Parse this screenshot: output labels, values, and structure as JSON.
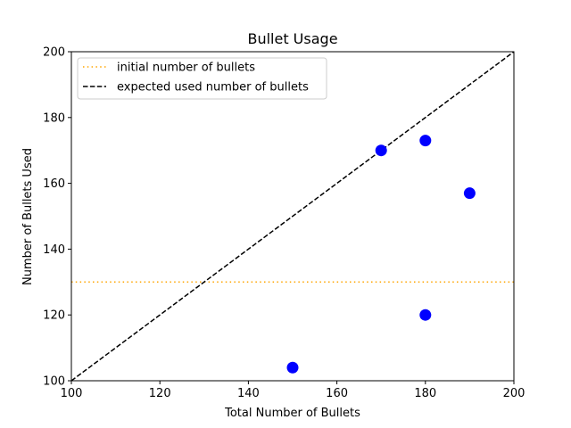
{
  "chart_data": {
    "type": "scatter",
    "title": "Bullet Usage",
    "xlabel": "Total Number of Bullets",
    "ylabel": "Number of Bullets Used",
    "xlim": [
      100,
      200
    ],
    "ylim": [
      100,
      200
    ],
    "xticks": [
      "100",
      "120",
      "140",
      "160",
      "180",
      "200"
    ],
    "yticks": [
      "100",
      "120",
      "140",
      "160",
      "180",
      "200"
    ],
    "grid": false,
    "legend_position": "top-left",
    "series": [
      {
        "type": "scatter",
        "color": "#0000ff",
        "points": [
          {
            "x": 150,
            "y": 104
          },
          {
            "x": 170,
            "y": 170
          },
          {
            "x": 180,
            "y": 173
          },
          {
            "x": 180,
            "y": 120
          },
          {
            "x": 190,
            "y": 157
          }
        ]
      }
    ],
    "reference_lines": [
      {
        "name": "initial number of bullets",
        "kind": "horizontal",
        "y": 130,
        "color": "#ffa500",
        "style": "dotted"
      },
      {
        "name": "expected used number of bullets",
        "kind": "diagonal",
        "from": [
          100,
          100
        ],
        "to": [
          200,
          200
        ],
        "color": "#000000",
        "style": "dashed"
      }
    ]
  }
}
